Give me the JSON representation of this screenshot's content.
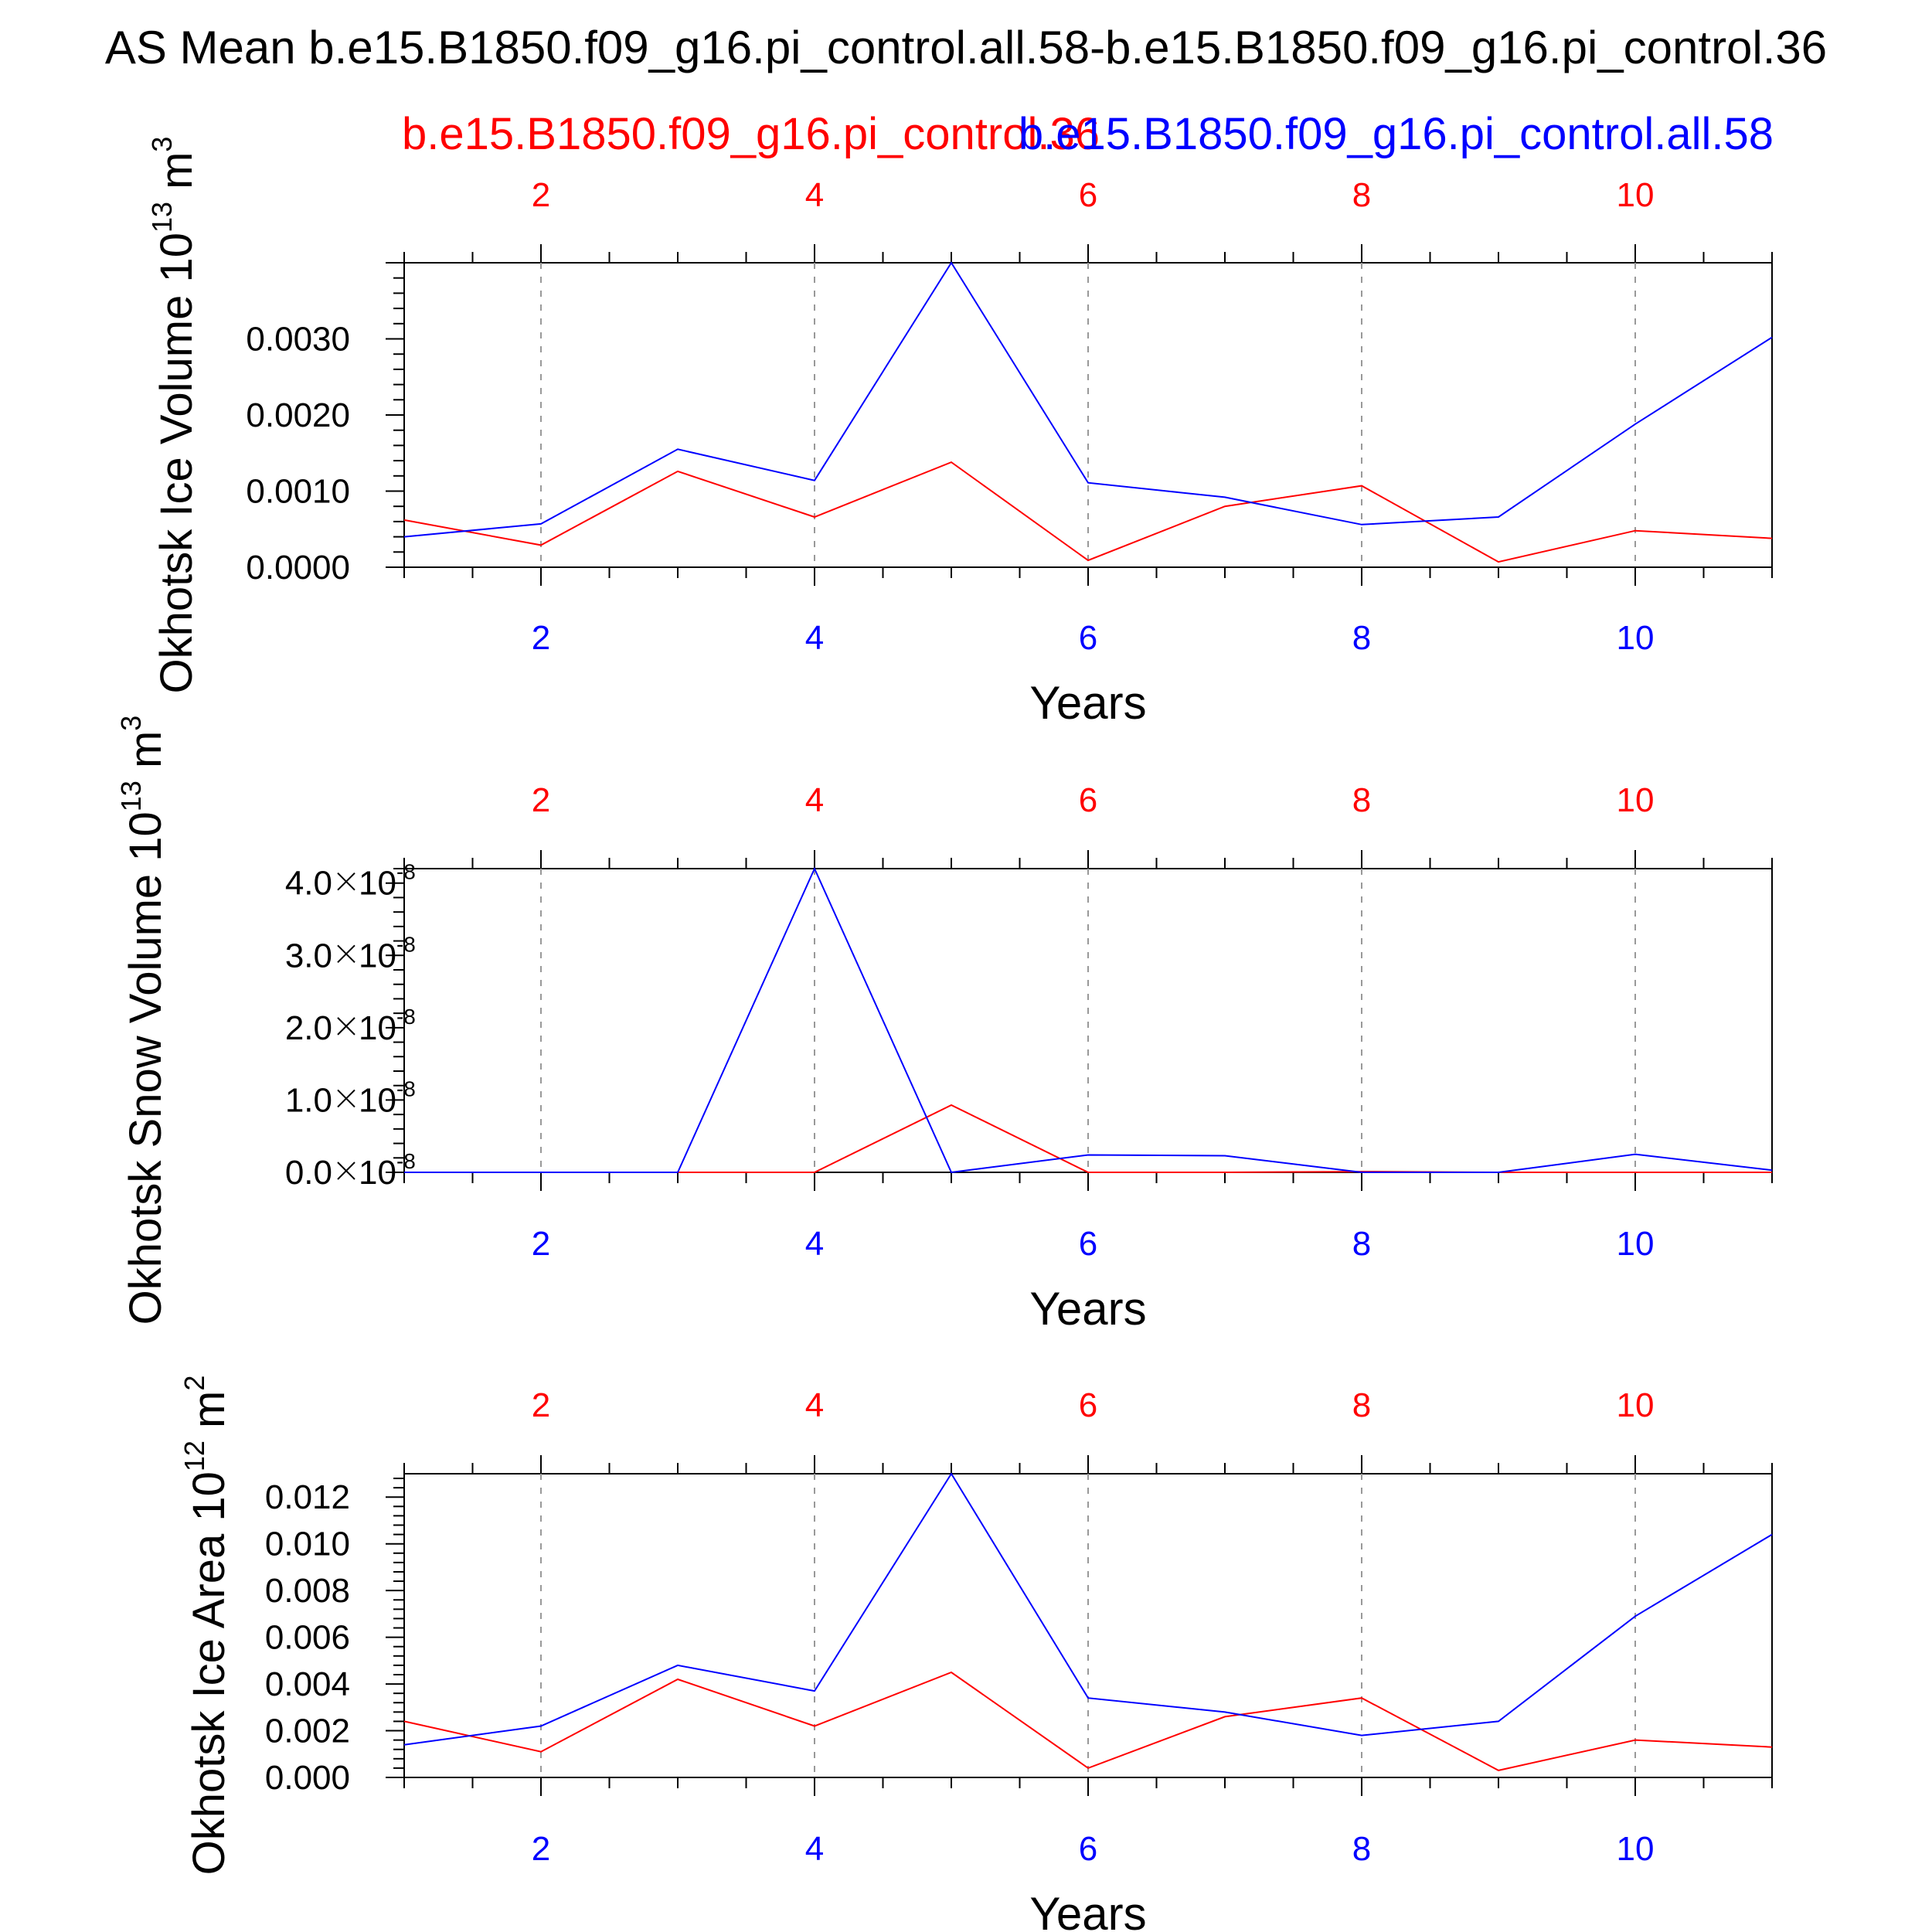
{
  "title": "AS Mean b.e15.B1850.f09_g16.pi_control.all.58-b.e15.B1850.f09_g16.pi_control.36",
  "legend": {
    "red_label": "b.e15.B1850.f09_g16.pi_control.36",
    "blue_label": "b.e15.B1850.f09_g16.pi_control.all.58"
  },
  "colors": {
    "red": "#ff0000",
    "blue": "#0000ff",
    "axis": "#000000",
    "grid": "#999999"
  },
  "chart_data": [
    {
      "type": "line",
      "ylabel": "Okhotsk Ice Volume 10",
      "ylabel_exp": "13",
      "ylabel_unit": " m",
      "ylabel_unit_exp": "3",
      "xlabel": "Years",
      "xlim": [
        1,
        11
      ],
      "ylim": [
        0,
        0.004
      ],
      "x_ticks": [
        "2",
        "4",
        "6",
        "8",
        "10"
      ],
      "y_ticks": [
        {
          "value": 0.0,
          "label": "0.0000"
        },
        {
          "value": 0.001,
          "label": "0.0010"
        },
        {
          "value": 0.002,
          "label": "0.0020"
        },
        {
          "value": 0.003,
          "label": "0.0030"
        }
      ],
      "series": [
        {
          "name": "b.e15.B1850.f09_g16.pi_control.36",
          "color": "red",
          "x": [
            1,
            2,
            3,
            4,
            5,
            6,
            7,
            8,
            9,
            10,
            11
          ],
          "values": [
            0.00062,
            0.00029,
            0.00126,
            0.00066,
            0.00138,
            9e-05,
            0.0008,
            0.00107,
            7e-05,
            0.00048,
            0.00038
          ]
        },
        {
          "name": "b.e15.B1850.f09_g16.pi_control.all.58",
          "color": "blue",
          "x": [
            1,
            2,
            3,
            4,
            5,
            6,
            7,
            8,
            9,
            10,
            11
          ],
          "values": [
            0.0004,
            0.00057,
            0.00155,
            0.00114,
            0.004,
            0.00111,
            0.00092,
            0.00056,
            0.00066,
            0.00188,
            0.00302
          ]
        }
      ]
    },
    {
      "type": "line",
      "ylabel": "Okhotsk Snow Volume 10",
      "ylabel_exp": "13",
      "ylabel_unit": " m",
      "ylabel_unit_exp": "3",
      "xlabel": "Years",
      "xlim": [
        1,
        11
      ],
      "ylim": [
        0,
        4.2e-08
      ],
      "x_ticks": [
        "2",
        "4",
        "6",
        "8",
        "10"
      ],
      "y_ticks": [
        {
          "value": 0.0,
          "label": "0.0",
          "exp": "-8"
        },
        {
          "value": 1e-08,
          "label": "1.0",
          "exp": "-8"
        },
        {
          "value": 2e-08,
          "label": "2.0",
          "exp": "-8"
        },
        {
          "value": 3e-08,
          "label": "3.0",
          "exp": "-8"
        },
        {
          "value": 4e-08,
          "label": "4.0",
          "exp": "-8"
        }
      ],
      "series": [
        {
          "name": "b.e15.B1850.f09_g16.pi_control.36",
          "color": "red",
          "x": [
            1,
            2,
            3,
            4,
            5,
            6,
            7,
            8,
            9,
            10,
            11
          ],
          "values": [
            0,
            0,
            0,
            0,
            9.3e-09,
            0,
            0,
            1e-10,
            0,
            0,
            0
          ]
        },
        {
          "name": "b.e15.B1850.f09_g16.pi_control.all.58",
          "color": "blue",
          "x": [
            1,
            2,
            3,
            4,
            5,
            6,
            7,
            8,
            9,
            10,
            11
          ],
          "values": [
            0,
            0,
            0,
            4.2e-08,
            0,
            2.4e-09,
            2.3e-09,
            0,
            0,
            2.5e-09,
            3e-10
          ]
        }
      ]
    },
    {
      "type": "line",
      "ylabel": "Okhotsk Ice Area 10",
      "ylabel_exp": "12",
      "ylabel_unit": " m",
      "ylabel_unit_exp": "2",
      "xlabel": "Years",
      "xlim": [
        1,
        11
      ],
      "ylim": [
        0,
        0.013
      ],
      "x_ticks": [
        "2",
        "4",
        "6",
        "8",
        "10"
      ],
      "y_ticks": [
        {
          "value": 0.0,
          "label": "0.000"
        },
        {
          "value": 0.002,
          "label": "0.002"
        },
        {
          "value": 0.004,
          "label": "0.004"
        },
        {
          "value": 0.006,
          "label": "0.006"
        },
        {
          "value": 0.008,
          "label": "0.008"
        },
        {
          "value": 0.01,
          "label": "0.010"
        },
        {
          "value": 0.012,
          "label": "0.012"
        }
      ],
      "series": [
        {
          "name": "b.e15.B1850.f09_g16.pi_control.36",
          "color": "red",
          "x": [
            1,
            2,
            3,
            4,
            5,
            6,
            7,
            8,
            9,
            10,
            11
          ],
          "values": [
            0.0024,
            0.0011,
            0.0042,
            0.0022,
            0.0045,
            0.0004,
            0.0026,
            0.0034,
            0.0003,
            0.0016,
            0.0013
          ]
        },
        {
          "name": "b.e15.B1850.f09_g16.pi_control.all.58",
          "color": "blue",
          "x": [
            1,
            2,
            3,
            4,
            5,
            6,
            7,
            8,
            9,
            10,
            11
          ],
          "values": [
            0.0014,
            0.0022,
            0.0048,
            0.0037,
            0.013,
            0.0034,
            0.0028,
            0.0018,
            0.0024,
            0.0069,
            0.0104
          ]
        }
      ]
    }
  ]
}
